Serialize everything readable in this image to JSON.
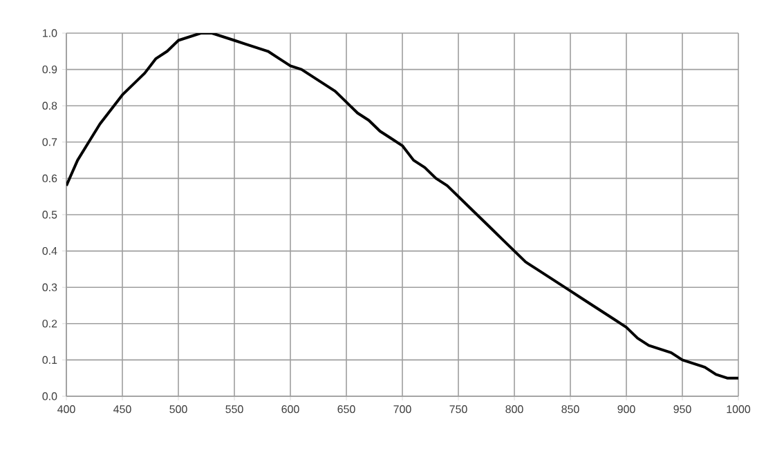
{
  "chart_data": {
    "type": "line",
    "grid": true,
    "xlim": [
      400,
      1000
    ],
    "ylim": [
      0,
      1
    ],
    "xticks": [
      400,
      450,
      500,
      550,
      600,
      650,
      700,
      750,
      800,
      850,
      900,
      950,
      1000
    ],
    "yticks": [
      {
        "value": 0,
        "label": "0.0"
      },
      {
        "value": 0.1,
        "label": "0.1"
      },
      {
        "value": 0.2,
        "label": "0.2"
      },
      {
        "value": 0.3,
        "label": "0.3"
      },
      {
        "value": 0.4,
        "label": "0.4"
      },
      {
        "value": 0.5,
        "label": "0.5"
      },
      {
        "value": 0.6,
        "label": "0.6"
      },
      {
        "value": 0.7,
        "label": "0.7"
      },
      {
        "value": 0.8,
        "label": "0.8"
      },
      {
        "value": 0.9,
        "label": "0.9"
      },
      {
        "value": 1,
        "label": "1.0"
      }
    ],
    "x": [
      400,
      410,
      420,
      430,
      440,
      450,
      460,
      470,
      480,
      490,
      500,
      510,
      520,
      530,
      540,
      550,
      560,
      570,
      580,
      590,
      600,
      610,
      620,
      630,
      640,
      650,
      660,
      670,
      680,
      690,
      700,
      710,
      720,
      730,
      740,
      750,
      760,
      770,
      780,
      790,
      800,
      810,
      820,
      830,
      840,
      850,
      860,
      870,
      880,
      890,
      900,
      910,
      920,
      930,
      940,
      950,
      960,
      970,
      980,
      990,
      1000
    ],
    "series": [
      {
        "color": "#000000",
        "values": [
          0.58,
          0.65,
          0.7,
          0.75,
          0.79,
          0.83,
          0.86,
          0.89,
          0.93,
          0.95,
          0.98,
          0.99,
          1.0,
          1.0,
          0.99,
          0.98,
          0.97,
          0.96,
          0.95,
          0.93,
          0.91,
          0.9,
          0.88,
          0.86,
          0.84,
          0.81,
          0.78,
          0.76,
          0.73,
          0.71,
          0.69,
          0.65,
          0.63,
          0.6,
          0.58,
          0.55,
          0.52,
          0.49,
          0.46,
          0.43,
          0.4,
          0.37,
          0.35,
          0.33,
          0.31,
          0.29,
          0.27,
          0.25,
          0.23,
          0.21,
          0.19,
          0.16,
          0.14,
          0.13,
          0.12,
          0.1,
          0.09,
          0.08,
          0.06,
          0.05,
          0.05
        ]
      }
    ],
    "marker": "none",
    "line_style": "solid"
  }
}
